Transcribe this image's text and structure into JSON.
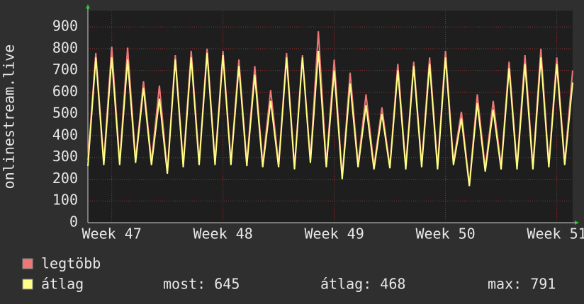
{
  "chart_data": {
    "type": "line",
    "y_label": "onlinestream.live",
    "x": [
      0,
      0.5,
      1,
      1.5,
      2,
      2.5,
      3,
      3.5,
      4,
      4.5,
      5,
      5.5,
      6,
      6.5,
      7,
      7.5,
      8,
      8.5,
      9,
      9.5,
      10,
      10.5,
      11,
      11.5,
      12,
      12.5,
      13,
      13.5,
      14,
      14.5,
      15,
      15.5,
      16,
      16.5,
      17,
      17.5,
      18,
      18.5,
      19,
      19.5,
      20,
      20.5,
      21,
      21.5,
      22,
      22.5,
      23,
      23.5,
      24,
      24.5,
      25,
      25.5,
      26,
      26.5,
      27,
      27.5,
      28,
      28.5,
      29,
      29.5,
      30,
      30.5
    ],
    "xlim": [
      0,
      30.5
    ],
    "xticks": [
      {
        "value": 1.5,
        "label": "Week 47"
      },
      {
        "value": 8.5,
        "label": "Week 48"
      },
      {
        "value": 15.5,
        "label": "Week 49"
      },
      {
        "value": 22.5,
        "label": "Week 50"
      },
      {
        "value": 29.5,
        "label": "Week 51"
      }
    ],
    "ylim": [
      0,
      975
    ],
    "yticks": [
      0,
      100,
      200,
      300,
      400,
      500,
      600,
      700,
      800,
      900
    ],
    "grid": true,
    "series": [
      {
        "name": "legtöbb",
        "color": "#ee7777",
        "values": [
          290,
          780,
          280,
          810,
          280,
          805,
          290,
          650,
          280,
          630,
          235,
          770,
          270,
          790,
          280,
          800,
          280,
          790,
          280,
          750,
          275,
          720,
          270,
          610,
          270,
          780,
          260,
          770,
          290,
          880,
          270,
          750,
          210,
          690,
          270,
          590,
          260,
          530,
          260,
          730,
          260,
          740,
          270,
          760,
          260,
          790,
          280,
          510,
          175,
          590,
          250,
          560,
          260,
          740,
          260,
          770,
          260,
          800,
          270,
          760,
          280,
          700
        ]
      },
      {
        "name": "átlag",
        "color": "#ffff88",
        "values": [
          260,
          760,
          265,
          760,
          265,
          750,
          275,
          620,
          265,
          570,
          225,
          750,
          255,
          760,
          265,
          780,
          265,
          770,
          265,
          720,
          260,
          680,
          255,
          560,
          255,
          760,
          245,
          760,
          275,
          790,
          255,
          700,
          200,
          640,
          255,
          540,
          245,
          500,
          250,
          700,
          245,
          720,
          255,
          730,
          245,
          760,
          265,
          480,
          168,
          550,
          235,
          520,
          245,
          710,
          245,
          730,
          245,
          760,
          255,
          730,
          265,
          645
        ]
      }
    ],
    "stats": [
      "most: 645",
      "átlag: 468",
      "max: 791"
    ]
  }
}
